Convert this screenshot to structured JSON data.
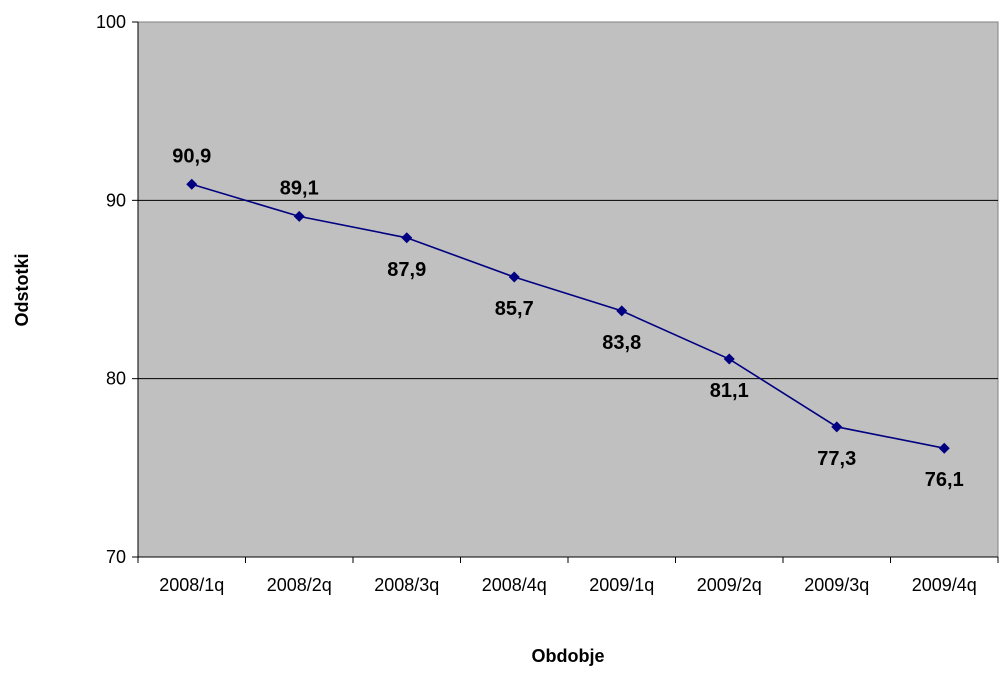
{
  "chart_data": {
    "type": "line",
    "xlabel": "Obdobje",
    "ylabel": "Odstotki",
    "categories": [
      "2008/1q",
      "2008/2q",
      "2008/3q",
      "2008/4q",
      "2009/1q",
      "2009/2q",
      "2009/3q",
      "2009/4q"
    ],
    "series": [
      {
        "values": [
          90.9,
          89.1,
          87.9,
          85.7,
          83.8,
          81.1,
          77.3,
          76.1
        ],
        "labels": [
          "90,9",
          "89,1",
          "87,9",
          "85,7",
          "83,8",
          "81,1",
          "77,3",
          "76,1"
        ],
        "color": "#000080"
      }
    ],
    "ylim": [
      70,
      100
    ],
    "yticks": [
      "70",
      "80",
      "90",
      "100"
    ],
    "grid": true,
    "plot_background": "#c0c0c0",
    "legend": "none"
  }
}
